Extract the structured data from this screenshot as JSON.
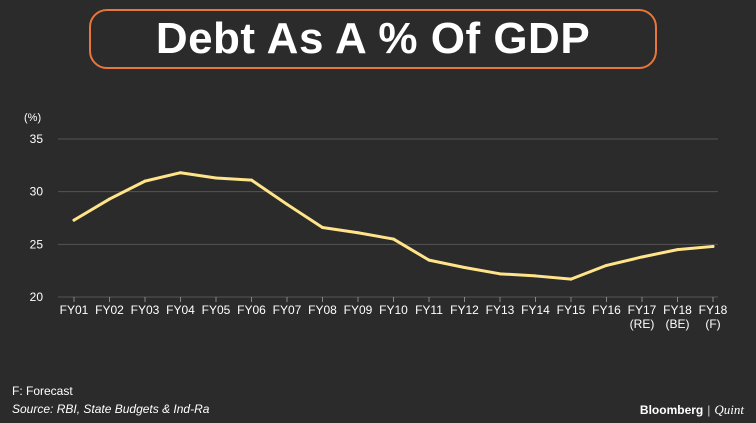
{
  "title": "Debt As A % Of GDP",
  "colors": {
    "background": "#2b2b2b",
    "title_border": "#e8763a",
    "line": "#ffe48a",
    "grid": "#555555"
  },
  "chart_data": {
    "type": "line",
    "title": "Debt As A % Of GDP",
    "ylabel": "(%)",
    "xlabel": "",
    "ylim": [
      20,
      35
    ],
    "yticks": [
      20,
      25,
      30,
      35
    ],
    "grid": true,
    "categories": [
      [
        "FY01"
      ],
      [
        "FY02"
      ],
      [
        "FY03"
      ],
      [
        "FY04"
      ],
      [
        "FY05"
      ],
      [
        "FY06"
      ],
      [
        "FY07"
      ],
      [
        "FY08"
      ],
      [
        "FY09"
      ],
      [
        "FY10"
      ],
      [
        "FY11"
      ],
      [
        "FY12"
      ],
      [
        "FY13"
      ],
      [
        "FY14"
      ],
      [
        "FY15"
      ],
      [
        "FY16"
      ],
      [
        "FY17",
        "(RE)"
      ],
      [
        "FY18",
        "(BE)"
      ],
      [
        "FY18",
        "(F)"
      ]
    ],
    "series": [
      {
        "values": [
          27.3,
          29.3,
          31.0,
          31.8,
          31.3,
          31.1,
          28.8,
          26.6,
          26.1,
          25.5,
          23.5,
          22.8,
          22.2,
          22.0,
          21.7,
          23.0,
          23.8,
          24.5,
          24.8
        ]
      }
    ]
  },
  "footnote": {
    "legend_note": "F: Forecast",
    "source": "Source: RBI, State Budgets & Ind-Ra"
  },
  "brand": {
    "primary": "Bloomberg",
    "separator": "|",
    "secondary": "Quint"
  }
}
